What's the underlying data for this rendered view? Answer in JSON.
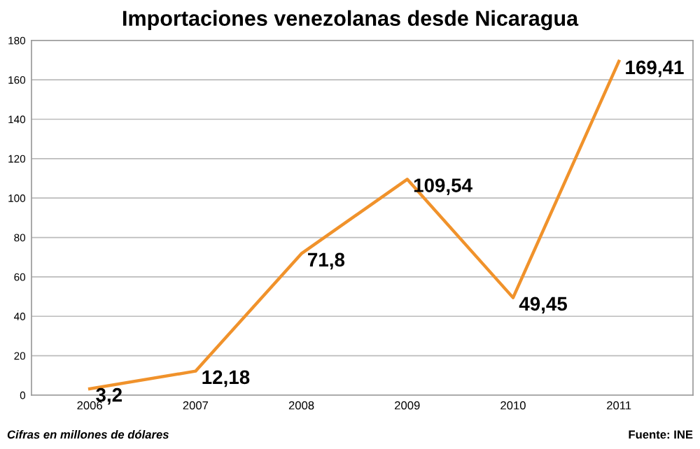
{
  "chart_data": {
    "type": "line",
    "title": "Importaciones venezolanas desde Nicaragua",
    "categories": [
      "2006",
      "2007",
      "2008",
      "2009",
      "2010",
      "2011"
    ],
    "series": [
      {
        "color": "#f0922b",
        "values": [
          3.2,
          12.18,
          71.8,
          109.54,
          49.45,
          169.41
        ],
        "value_labels": [
          "3,2",
          "12,18",
          "71,8",
          "109,54",
          "49,45",
          "169,41"
        ]
      }
    ],
    "ylim": [
      0,
      180
    ],
    "yticks": [
      0,
      20,
      40,
      60,
      80,
      100,
      120,
      140,
      160,
      180
    ],
    "grid": "y",
    "legend": false,
    "marker": "none",
    "line_style": "solid",
    "annotations": [
      "Cifras en millones de dólares",
      "Fuente: INE"
    ]
  }
}
